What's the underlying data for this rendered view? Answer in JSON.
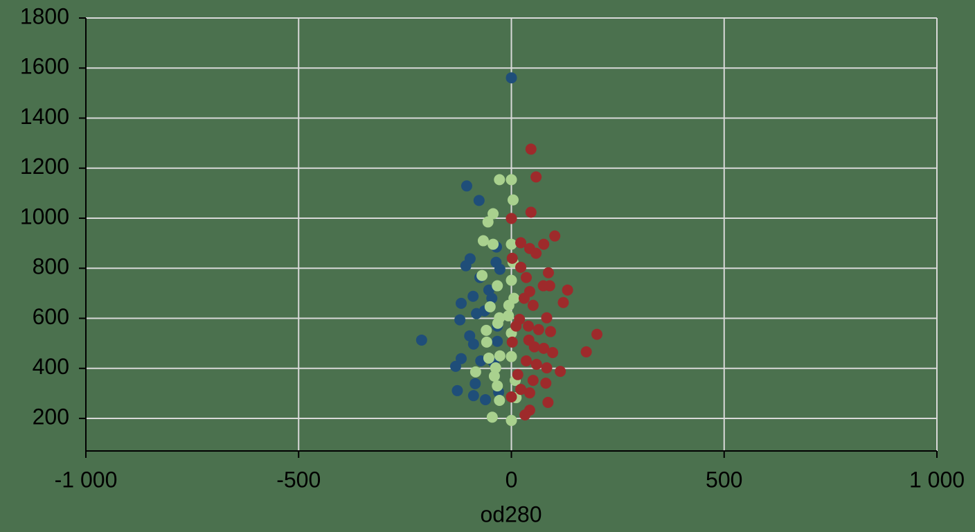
{
  "chart_data": {
    "type": "scatter",
    "xlabel": "od280",
    "xlim": [
      -1000,
      1000
    ],
    "xticks": [
      {
        "value": -1000,
        "label": "-1 000"
      },
      -500,
      0,
      500,
      {
        "value": 1000,
        "label": "1 000"
      }
    ],
    "ylim": [
      70,
      1800
    ],
    "yticks": [
      200,
      400,
      600,
      800,
      1000,
      1200,
      1400,
      1600,
      1800
    ],
    "grid": true,
    "series": [
      {
        "color": "#1f4e79",
        "x": [
          0,
          -105,
          -76,
          -97,
          -107,
          -35,
          -36,
          -27,
          -74,
          -53,
          -90,
          -118,
          -63,
          -82,
          -121,
          -33,
          -211,
          -98,
          -89,
          -33,
          -72,
          -118,
          -131,
          -42,
          -85,
          -127,
          -89,
          -61,
          -30,
          -46
        ],
        "values": [
          1561,
          1129,
          1071,
          838,
          810,
          885,
          824,
          796,
          763,
          713,
          688,
          660,
          630,
          619,
          594,
          569,
          513,
          530,
          497,
          508,
          430,
          439,
          408,
          425,
          339,
          311,
          291,
          275,
          305,
          680
        ]
      },
      {
        "color": "#a9d18e",
        "x": [
          -28,
          0,
          4,
          -43,
          -55,
          -66,
          0,
          -43,
          4,
          0,
          -69,
          -33,
          6,
          -50,
          -28,
          -7,
          -59,
          -32,
          -58,
          0,
          -53,
          -27,
          0,
          -84,
          -37,
          -40,
          9,
          -33,
          11,
          -28,
          -45,
          0,
          -6
        ],
        "values": [
          1154,
          1154,
          1073,
          1018,
          985,
          910,
          896,
          896,
          824,
          752,
          771,
          730,
          680,
          646,
          602,
          610,
          552,
          580,
          505,
          541,
          441,
          450,
          447,
          386,
          402,
          369,
          352,
          330,
          283,
          272,
          205,
          192,
          652
        ]
      },
      {
        "color": "#9e2a2b",
        "x": [
          46,
          58,
          46,
          0,
          22,
          43,
          58,
          76,
          102,
          2,
          22,
          87,
          35,
          75,
          90,
          132,
          43,
          122,
          51,
          19,
          83,
          40,
          64,
          92,
          201,
          2,
          41,
          76,
          97,
          176,
          35,
          59,
          83,
          115,
          15,
          51,
          81,
          22,
          43,
          0,
          86,
          43,
          32,
          11,
          30,
          54
        ],
        "values": [
          1276,
          1165,
          1024,
          999,
          902,
          879,
          860,
          896,
          929,
          840,
          804,
          782,
          763,
          730,
          730,
          713,
          707,
          663,
          652,
          596,
          602,
          569,
          555,
          547,
          536,
          505,
          513,
          480,
          463,
          466,
          430,
          416,
          402,
          388,
          375,
          352,
          341,
          316,
          302,
          286,
          264,
          233,
          214,
          569,
          680,
          486
        ]
      }
    ]
  }
}
